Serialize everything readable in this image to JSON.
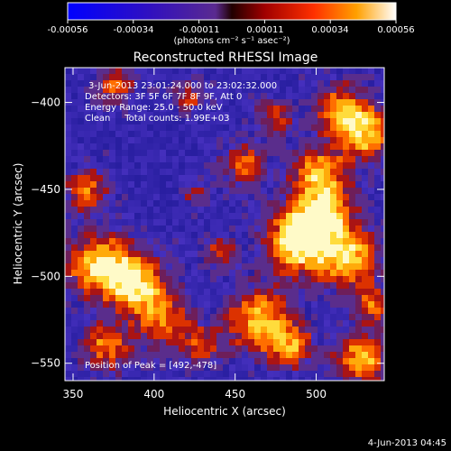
{
  "colorbar": {
    "tick_labels": [
      "-0.00056",
      "-0.00034",
      "-0.00011",
      "0.00011",
      "0.00034",
      "0.00056"
    ],
    "units_label": "(photons cm⁻² s⁻¹ asec⁻²)",
    "range": [
      -0.00056,
      0.00056
    ]
  },
  "chart_data": {
    "type": "heatmap",
    "title": "Reconstructed RHESSI Image",
    "xlabel": "Heliocentric X (arcsec)",
    "ylabel": "Heliocentric Y (arcsec)",
    "xlim": [
      345,
      542
    ],
    "ylim": [
      -560,
      -380
    ],
    "x_ticks": [
      350,
      400,
      450,
      500
    ],
    "y_ticks": [
      -400,
      -450,
      -500,
      -550
    ],
    "annotations": [
      "3-Jun-2013 23:01:24.000 to 23:02:32.000",
      "Detectors: 3F 5F 6F 7F 8F 9F, Att 0",
      "Energy Range: 25.0 - 50.0 keV",
      "Clean     Total counts: 1.99E+03"
    ],
    "peak_label": "Position of Peak = [492,-478]",
    "peak_position": [
      492,
      -478
    ]
  },
  "footer": {
    "timestamp": "4-Jun-2013 04:45"
  }
}
